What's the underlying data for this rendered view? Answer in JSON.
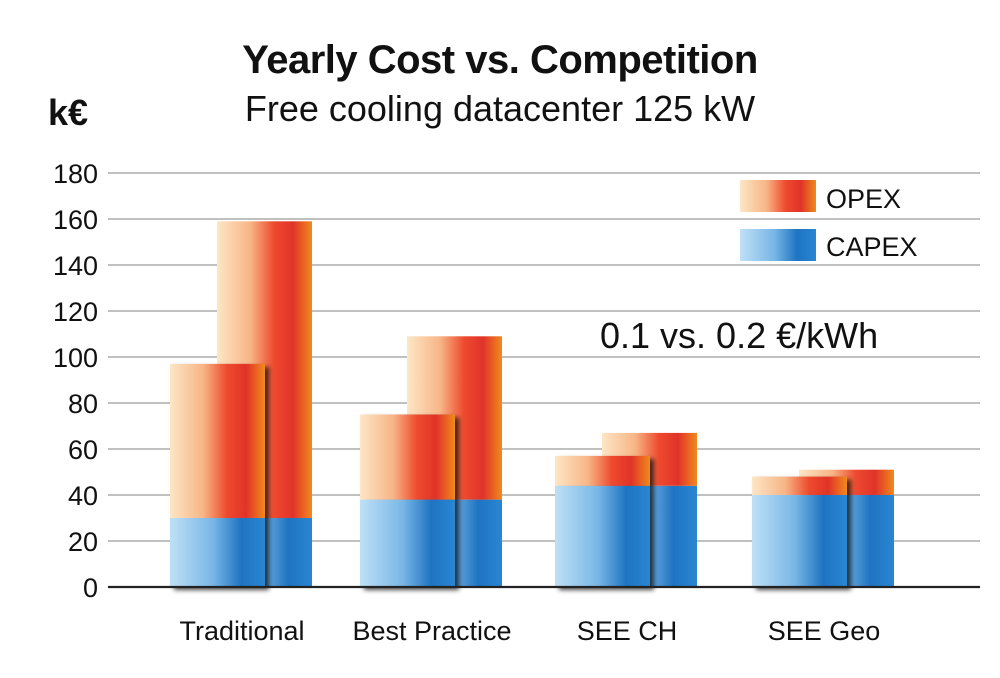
{
  "chart_data": {
    "type": "bar",
    "title": "Yearly Cost vs. Competition",
    "subtitle": "Free cooling datacenter 125 kW",
    "ylabel": "k€",
    "xlabel": "",
    "ylim": [
      0,
      180
    ],
    "yticks": [
      0,
      20,
      40,
      60,
      80,
      100,
      120,
      140,
      160,
      180
    ],
    "grid": true,
    "legend_position": "top-right",
    "stacked": true,
    "annotation": "0.1 vs. 0.2 €/kWh",
    "categories": [
      "Traditional",
      "Best Practice",
      "SEE CH",
      "SEE Geo"
    ],
    "series": [
      {
        "name": "CAPEX",
        "color": "#2a7fc8",
        "values_at_0_1": [
          30,
          38,
          44,
          40
        ],
        "values_at_0_2": [
          30,
          38,
          44,
          40
        ]
      },
      {
        "name": "OPEX",
        "color": "#e8501c",
        "values_at_0_1": [
          67,
          37,
          13,
          8
        ],
        "values_at_0_2": [
          129,
          71,
          23,
          11
        ]
      }
    ]
  }
}
